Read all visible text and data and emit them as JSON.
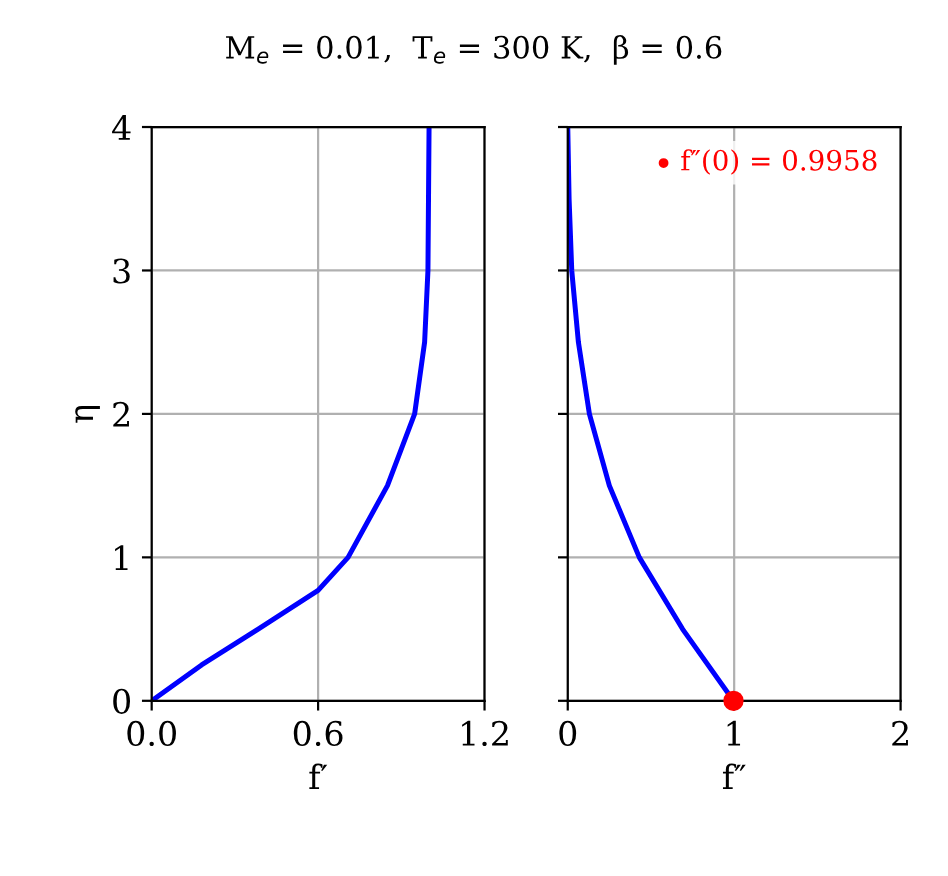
{
  "chart_data": [
    {
      "type": "line",
      "title": "M$_{e}$ = 0.01,  T$_{e}$ = 300 K,  β = 0.6",
      "xlabel": "f′",
      "ylabel": "η",
      "xlim": [
        0,
        1.2
      ],
      "xticks": [
        {
          "value": 0,
          "label": "0.0"
        },
        0.6,
        1.2
      ],
      "ylim": [
        0,
        4
      ],
      "yticks": [
        0,
        1,
        2,
        3,
        4
      ],
      "grid": true,
      "series": [
        {
          "color": "#0000ff",
          "x": [
            0,
            0.18,
            0.384,
            0.6,
            0.708,
            0.85,
            0.948,
            0.984,
            0.996,
            1.0
          ],
          "values": [
            0,
            0.25,
            0.5,
            0.77,
            1,
            1.5,
            2,
            2.5,
            3,
            4
          ]
        }
      ]
    },
    {
      "type": "line",
      "xlabel": "f″",
      "xlim": [
        0,
        2
      ],
      "xticks": [
        0,
        1,
        2
      ],
      "ylim": [
        0,
        4
      ],
      "yticks": [
        0,
        1,
        2,
        3,
        4
      ],
      "tick_labels": "x",
      "grid": true,
      "legend": "top right",
      "series": [
        {
          "color": "#0000ff",
          "x": [
            0.9958,
            0.69,
            0.43,
            0.25,
            0.13,
            0.064,
            0.024,
            0.008,
            0
          ],
          "values": [
            0,
            0.5,
            1,
            1.5,
            2,
            2.5,
            3,
            3.5,
            4
          ]
        },
        {
          "type": "scatter",
          "name": "f″(0) = 0.9958",
          "color": "#ff0000",
          "x": [
            0.9958
          ],
          "values": [
            0
          ]
        }
      ]
    }
  ]
}
